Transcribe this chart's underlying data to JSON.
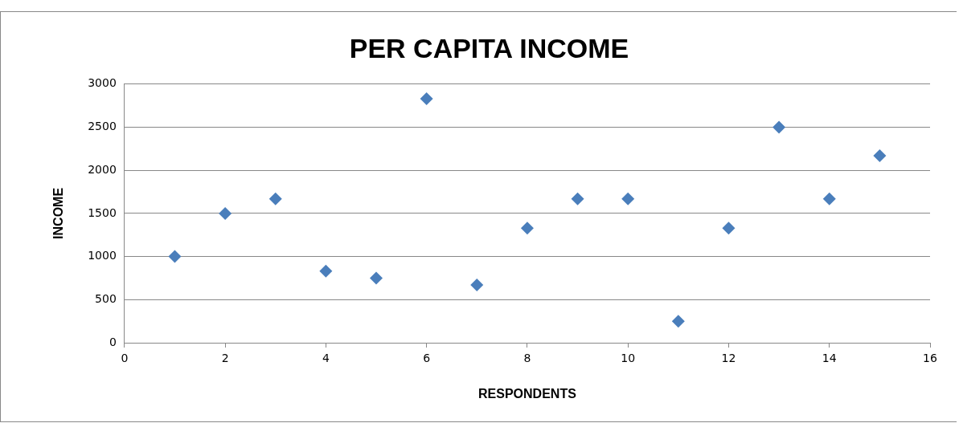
{
  "chart_data": {
    "type": "scatter",
    "title": "PER CAPITA INCOME",
    "xlabel": "RESPONDENTS",
    "ylabel": "INCOME",
    "x": [
      1,
      2,
      3,
      4,
      5,
      6,
      7,
      8,
      9,
      10,
      11,
      12,
      13,
      14,
      15
    ],
    "series": [
      {
        "color": "#4a7ebb",
        "values": [
          1000,
          1500,
          1670,
          830,
          750,
          2830,
          670,
          1330,
          1670,
          1670,
          250,
          1330,
          2500,
          1670,
          2170
        ]
      }
    ],
    "xlim": [
      0,
      16
    ],
    "xticks": [
      0,
      2,
      4,
      6,
      8,
      10,
      12,
      14,
      16
    ],
    "ylim": [
      0,
      3000
    ],
    "yticks": [
      0,
      500,
      1000,
      1500,
      2000,
      2500,
      3000
    ],
    "grid": "y",
    "legend": false,
    "marker": "diamond"
  }
}
